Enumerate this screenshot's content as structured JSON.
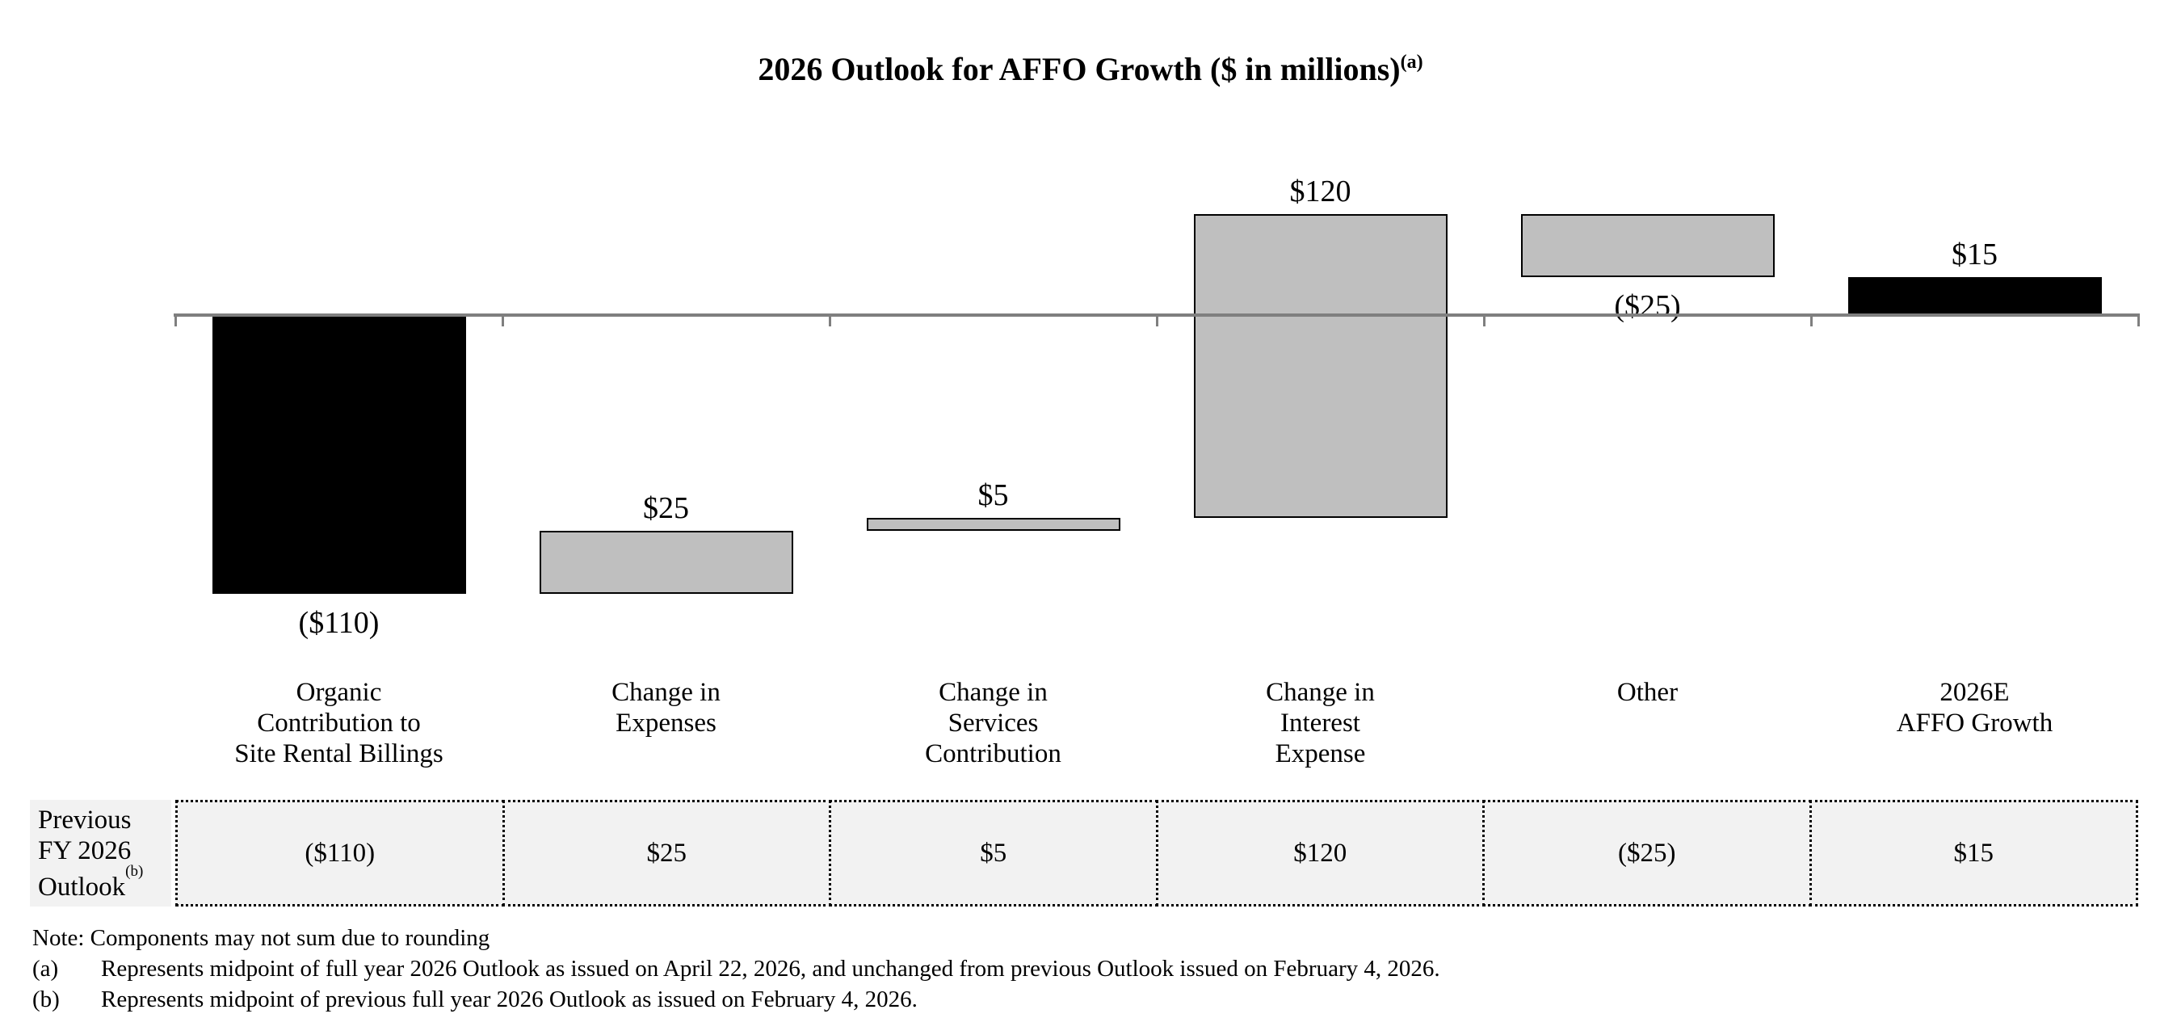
{
  "title": {
    "text": "2026 Outlook for AFFO Growth ($ in millions)",
    "superscript": "(a)"
  },
  "chart_data": {
    "type": "bar",
    "subtype": "waterfall",
    "title": "2026 Outlook for AFFO Growth ($ in millions)",
    "categories": [
      [
        "Organic",
        "Contribution to",
        "Site Rental Billings"
      ],
      [
        "Change in",
        "Expenses"
      ],
      [
        "Change in",
        "Services",
        "Contribution"
      ],
      [
        "Change in",
        "Interest",
        "Expense"
      ],
      [
        "Other"
      ],
      [
        "2026E",
        "AFFO Growth"
      ]
    ],
    "values": [
      -110,
      25,
      5,
      120,
      -25,
      15
    ],
    "bar_spans": [
      [
        0,
        -110
      ],
      [
        -110,
        -85
      ],
      [
        -85,
        -80
      ],
      [
        -80,
        40
      ],
      [
        40,
        15
      ],
      [
        0,
        15
      ]
    ],
    "data_labels": [
      "($110)",
      "$25",
      "$5",
      "$120",
      "($25)",
      "$15"
    ],
    "label_side": [
      "below",
      "above",
      "above",
      "above",
      "below",
      "above"
    ],
    "bar_colors": [
      "#000000",
      "#bfbfbf",
      "#bfbfbf",
      "#bfbfbf",
      "#bfbfbf",
      "#000000"
    ],
    "ylim": [
      -124,
      45
    ],
    "grid": false,
    "legend": false,
    "axis_color": "#7f7f7f"
  },
  "table": {
    "row_header": {
      "lines": [
        "Previous",
        "FY 2026",
        "Outlook"
      ],
      "superscript": "(b)"
    },
    "values": [
      "($110)",
      "$25",
      "$5",
      "$120",
      "($25)",
      "$15"
    ]
  },
  "notes": {
    "note": "Note: Components may not sum due to rounding",
    "items": [
      {
        "label": "(a)",
        "text": "Represents midpoint of full year 2026 Outlook as issued on April 22, 2026, and unchanged from previous Outlook issued on February 4, 2026."
      },
      {
        "label": "(b)",
        "text": "Represents midpoint of previous full year 2026 Outlook as issued on February 4, 2026."
      }
    ]
  }
}
